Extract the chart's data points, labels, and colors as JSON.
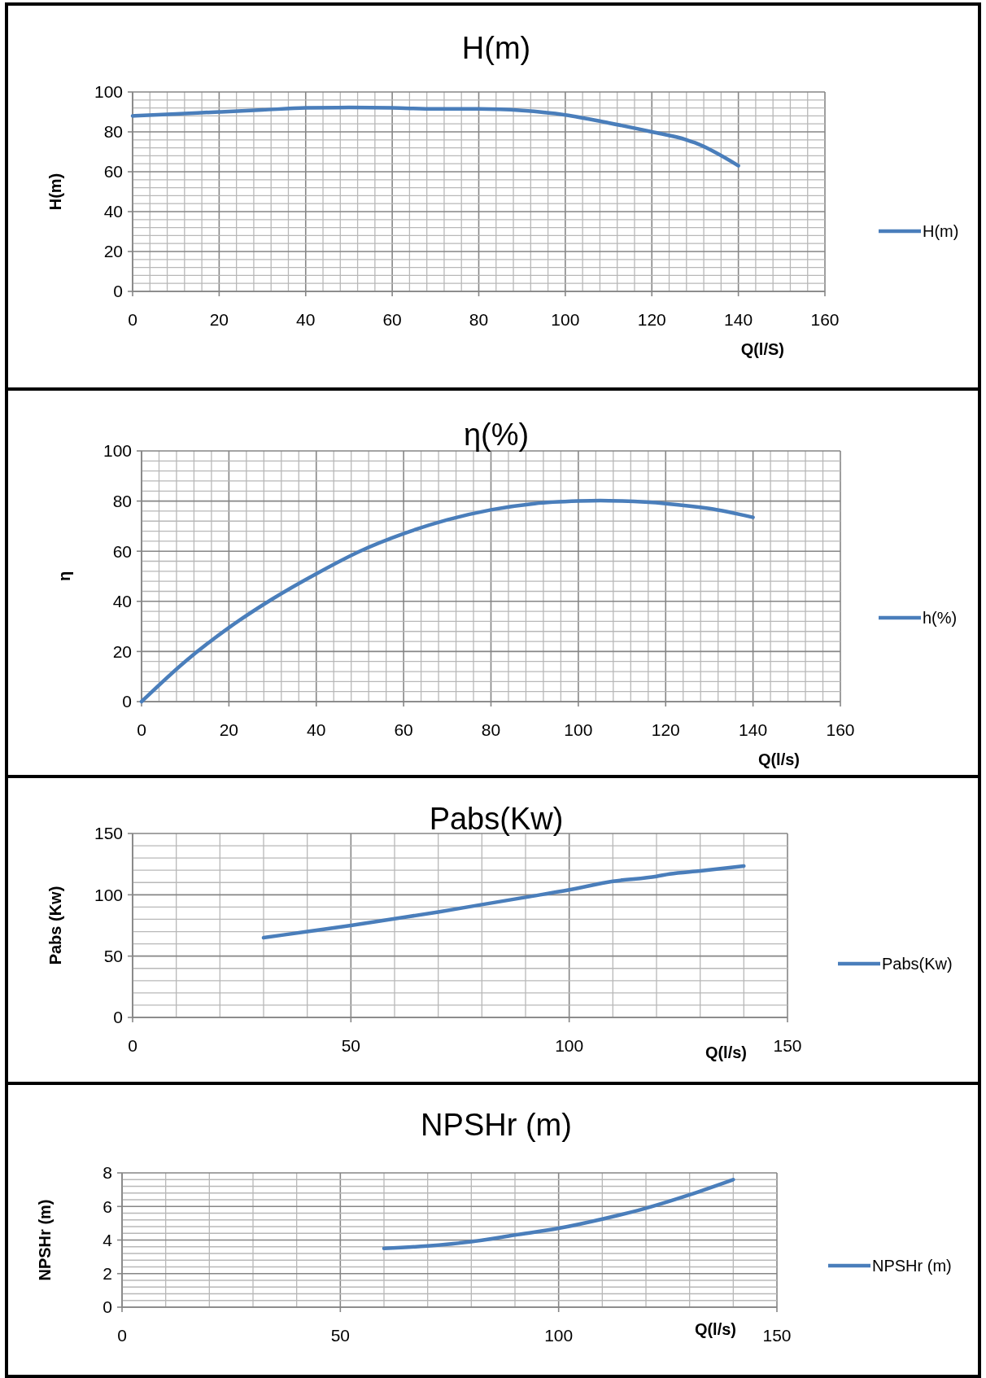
{
  "chart_data": [
    {
      "type": "line",
      "title": "H(m)",
      "xlabel": "Q(l/S)",
      "ylabel": "H(m)",
      "legend": "right",
      "grid": true,
      "x": [
        0,
        10,
        20,
        30,
        40,
        50,
        60,
        70,
        80,
        90,
        100,
        110,
        120,
        128,
        130,
        140
      ],
      "series": [
        {
          "name": "H(m)",
          "color": "#4a7ebb",
          "values": [
            88,
            89,
            90,
            91,
            92,
            92.2,
            92,
            91.5,
            91.5,
            90.7,
            88.5,
            84.5,
            80,
            76,
            74.5,
            63
          ]
        }
      ],
      "xlim": [
        0,
        160
      ],
      "ylim": [
        0,
        100
      ],
      "xticks": [
        0,
        {
          "value": 4,
          "label": null
        },
        {
          "value": 8,
          "label": null
        },
        {
          "value": 12,
          "label": null
        },
        {
          "value": 16,
          "label": null
        },
        20,
        {
          "value": 24,
          "label": null
        },
        {
          "value": 28,
          "label": null
        },
        {
          "value": 32,
          "label": null
        },
        {
          "value": 36,
          "label": null
        },
        40,
        {
          "value": 44,
          "label": null
        },
        {
          "value": 48,
          "label": null
        },
        {
          "value": 52,
          "label": null
        },
        {
          "value": 56,
          "label": null
        },
        60,
        {
          "value": 64,
          "label": null
        },
        {
          "value": 68,
          "label": null
        },
        {
          "value": 72,
          "label": null
        },
        {
          "value": 76,
          "label": null
        },
        80,
        {
          "value": 84,
          "label": null
        },
        {
          "value": 88,
          "label": null
        },
        {
          "value": 92,
          "label": null
        },
        {
          "value": 96,
          "label": null
        },
        100,
        {
          "value": 104,
          "label": null
        },
        {
          "value": 108,
          "label": null
        },
        {
          "value": 112,
          "label": null
        },
        {
          "value": 116,
          "label": null
        },
        120,
        {
          "value": 124,
          "label": null
        },
        {
          "value": 128,
          "label": null
        },
        {
          "value": 132,
          "label": null
        },
        {
          "value": 136,
          "label": null
        },
        140,
        {
          "value": 144,
          "label": null
        },
        {
          "value": 148,
          "label": null
        },
        {
          "value": 152,
          "label": null
        },
        {
          "value": 156,
          "label": null
        },
        160
      ],
      "yticks": [
        0,
        {
          "value": 4,
          "label": null
        },
        {
          "value": 8,
          "label": null
        },
        {
          "value": 12,
          "label": null
        },
        {
          "value": 16,
          "label": null
        },
        20,
        {
          "value": 24,
          "label": null
        },
        {
          "value": 28,
          "label": null
        },
        {
          "value": 32,
          "label": null
        },
        {
          "value": 36,
          "label": null
        },
        40,
        {
          "value": 44,
          "label": null
        },
        {
          "value": 48,
          "label": null
        },
        {
          "value": 52,
          "label": null
        },
        {
          "value": 56,
          "label": null
        },
        60,
        {
          "value": 64,
          "label": null
        },
        {
          "value": 68,
          "label": null
        },
        {
          "value": 72,
          "label": null
        },
        {
          "value": 76,
          "label": null
        },
        80,
        {
          "value": 84,
          "label": null
        },
        {
          "value": 88,
          "label": null
        },
        {
          "value": 92,
          "label": null
        },
        {
          "value": 96,
          "label": null
        },
        100
      ]
    },
    {
      "type": "line",
      "title": "η(%)",
      "xlabel": "Q(l/s)",
      "ylabel": "η",
      "legend": "right",
      "grid": true,
      "x": [
        0,
        10,
        20,
        30,
        40,
        50,
        60,
        70,
        80,
        90,
        100,
        105,
        110,
        120,
        130,
        140
      ],
      "series": [
        {
          "name": "h(%)",
          "color": "#4a7ebb",
          "values": [
            0,
            16,
            29.5,
            41,
            51,
            60,
            67,
            72.5,
            76.5,
            79,
            80,
            80.2,
            80,
            79,
            77,
            73.5
          ]
        }
      ],
      "xlim": [
        0,
        160
      ],
      "ylim": [
        0,
        100
      ],
      "xticks": [
        0,
        {
          "value": 4,
          "label": null
        },
        {
          "value": 8,
          "label": null
        },
        {
          "value": 12,
          "label": null
        },
        {
          "value": 16,
          "label": null
        },
        20,
        {
          "value": 24,
          "label": null
        },
        {
          "value": 28,
          "label": null
        },
        {
          "value": 32,
          "label": null
        },
        {
          "value": 36,
          "label": null
        },
        40,
        {
          "value": 44,
          "label": null
        },
        {
          "value": 48,
          "label": null
        },
        {
          "value": 52,
          "label": null
        },
        {
          "value": 56,
          "label": null
        },
        60,
        {
          "value": 64,
          "label": null
        },
        {
          "value": 68,
          "label": null
        },
        {
          "value": 72,
          "label": null
        },
        {
          "value": 76,
          "label": null
        },
        80,
        {
          "value": 84,
          "label": null
        },
        {
          "value": 88,
          "label": null
        },
        {
          "value": 92,
          "label": null
        },
        {
          "value": 96,
          "label": null
        },
        100,
        {
          "value": 104,
          "label": null
        },
        {
          "value": 108,
          "label": null
        },
        {
          "value": 112,
          "label": null
        },
        {
          "value": 116,
          "label": null
        },
        120,
        {
          "value": 124,
          "label": null
        },
        {
          "value": 128,
          "label": null
        },
        {
          "value": 132,
          "label": null
        },
        {
          "value": 136,
          "label": null
        },
        140,
        {
          "value": 144,
          "label": null
        },
        {
          "value": 148,
          "label": null
        },
        {
          "value": 152,
          "label": null
        },
        {
          "value": 156,
          "label": null
        },
        160
      ],
      "yticks": [
        0,
        {
          "value": 4,
          "label": null
        },
        {
          "value": 8,
          "label": null
        },
        {
          "value": 12,
          "label": null
        },
        {
          "value": 16,
          "label": null
        },
        20,
        {
          "value": 24,
          "label": null
        },
        {
          "value": 28,
          "label": null
        },
        {
          "value": 32,
          "label": null
        },
        {
          "value": 36,
          "label": null
        },
        40,
        {
          "value": 44,
          "label": null
        },
        {
          "value": 48,
          "label": null
        },
        {
          "value": 52,
          "label": null
        },
        {
          "value": 56,
          "label": null
        },
        60,
        {
          "value": 64,
          "label": null
        },
        {
          "value": 68,
          "label": null
        },
        {
          "value": 72,
          "label": null
        },
        {
          "value": 76,
          "label": null
        },
        80,
        {
          "value": 84,
          "label": null
        },
        {
          "value": 88,
          "label": null
        },
        {
          "value": 92,
          "label": null
        },
        {
          "value": 96,
          "label": null
        },
        100
      ]
    },
    {
      "type": "line",
      "title": "Pabs(Kw)",
      "xlabel": "Q(l/s)",
      "ylabel": "Pabs (Kw)",
      "legend": "right",
      "grid": true,
      "x": [
        30,
        40,
        50,
        60,
        70,
        80,
        90,
        100,
        110,
        120,
        123,
        130,
        140
      ],
      "series": [
        {
          "name": "Pabs(Kw)",
          "color": "#4a7ebb",
          "values": [
            65,
            70,
            75,
            80.5,
            86,
            92,
            98,
            104,
            111,
            115,
            117,
            119.5,
            123.5
          ]
        }
      ],
      "xlim": [
        0,
        150
      ],
      "ylim": [
        0,
        150
      ],
      "xticks": [
        0,
        {
          "value": 10,
          "label": null
        },
        {
          "value": 20,
          "label": null
        },
        {
          "value": 30,
          "label": null
        },
        {
          "value": 40,
          "label": null
        },
        50,
        {
          "value": 60,
          "label": null
        },
        {
          "value": 70,
          "label": null
        },
        {
          "value": 80,
          "label": null
        },
        {
          "value": 90,
          "label": null
        },
        100,
        {
          "value": 110,
          "label": null
        },
        {
          "value": 120,
          "label": null
        },
        {
          "value": 130,
          "label": null
        },
        {
          "value": 140,
          "label": null
        },
        150
      ],
      "yticks": [
        0,
        {
          "value": 10,
          "label": null
        },
        {
          "value": 20,
          "label": null
        },
        {
          "value": 30,
          "label": null
        },
        {
          "value": 40,
          "label": null
        },
        50,
        {
          "value": 60,
          "label": null
        },
        {
          "value": 70,
          "label": null
        },
        {
          "value": 80,
          "label": null
        },
        {
          "value": 90,
          "label": null
        },
        100,
        {
          "value": 110,
          "label": null
        },
        {
          "value": 120,
          "label": null
        },
        {
          "value": 130,
          "label": null
        },
        {
          "value": 140,
          "label": null
        },
        150
      ]
    },
    {
      "type": "line",
      "title": "NPSHr (m)",
      "xlabel": "Q(l/s)",
      "ylabel": "NPSHr (m)",
      "legend": "right",
      "grid": true,
      "x": [
        60,
        70,
        80,
        90,
        100,
        110,
        120,
        130,
        140
      ],
      "series": [
        {
          "name": "NPSHr (m)",
          "color": "#4a7ebb",
          "values": [
            3.5,
            3.65,
            3.9,
            4.3,
            4.7,
            5.25,
            5.9,
            6.7,
            7.6
          ]
        }
      ],
      "xlim": [
        0,
        150
      ],
      "ylim": [
        0,
        8
      ],
      "xticks": [
        0,
        {
          "value": 10,
          "label": null
        },
        {
          "value": 20,
          "label": null
        },
        {
          "value": 30,
          "label": null
        },
        {
          "value": 40,
          "label": null
        },
        50,
        {
          "value": 60,
          "label": null
        },
        {
          "value": 70,
          "label": null
        },
        {
          "value": 80,
          "label": null
        },
        {
          "value": 90,
          "label": null
        },
        100,
        {
          "value": 110,
          "label": null
        },
        {
          "value": 120,
          "label": null
        },
        {
          "value": 130,
          "label": null
        },
        {
          "value": 140,
          "label": null
        },
        150
      ],
      "yticks": [
        0,
        {
          "value": 0.4,
          "label": null
        },
        {
          "value": 0.8,
          "label": null
        },
        {
          "value": 1.2,
          "label": null
        },
        {
          "value": 1.6,
          "label": null
        },
        2,
        {
          "value": 2.4,
          "label": null
        },
        {
          "value": 2.8,
          "label": null
        },
        {
          "value": 3.2,
          "label": null
        },
        {
          "value": 3.6,
          "label": null
        },
        4,
        {
          "value": 4.4,
          "label": null
        },
        {
          "value": 4.8,
          "label": null
        },
        {
          "value": 5.2,
          "label": null
        },
        {
          "value": 5.6,
          "label": null
        },
        6,
        {
          "value": 6.4,
          "label": null
        },
        {
          "value": 6.8,
          "label": null
        },
        {
          "value": 7.2,
          "label": null
        },
        {
          "value": 7.6,
          "label": null
        },
        8
      ]
    }
  ]
}
